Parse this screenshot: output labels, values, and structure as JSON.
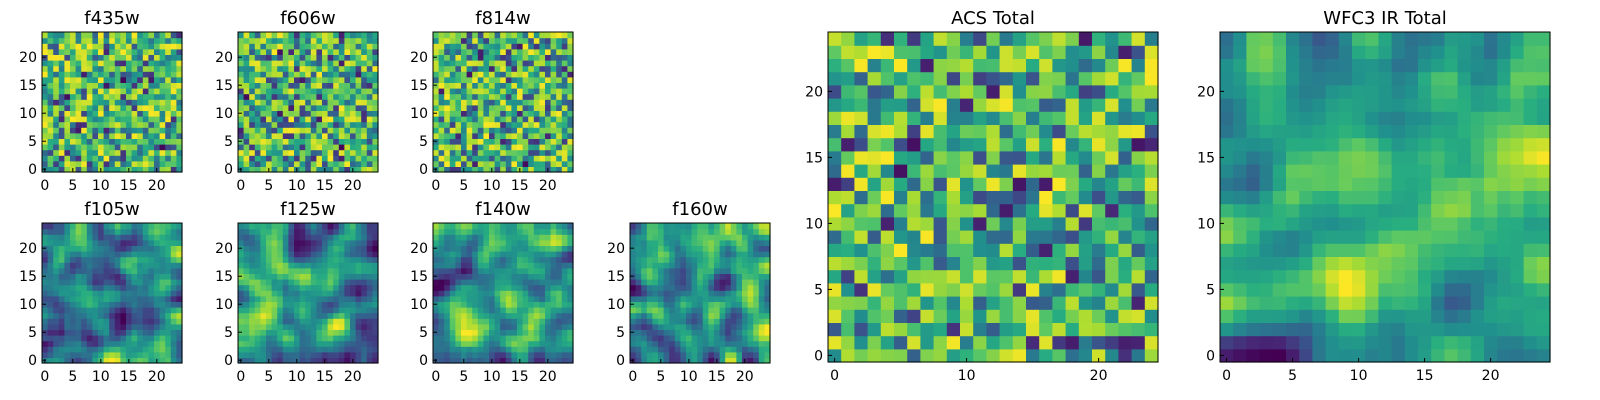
{
  "chart_data": [
    {
      "type": "heatmap",
      "title": "f435w",
      "grid_size": 25,
      "xticks": [
        0,
        5,
        10,
        15,
        20
      ],
      "yticks": [
        0,
        5,
        10,
        15,
        20
      ],
      "colormap": "viridis",
      "texture": "noise",
      "seed": 11
    },
    {
      "type": "heatmap",
      "title": "f606w",
      "grid_size": 25,
      "xticks": [
        0,
        5,
        10,
        15,
        20
      ],
      "yticks": [
        0,
        5,
        10,
        15,
        20
      ],
      "colormap": "viridis",
      "texture": "noise",
      "seed": 23
    },
    {
      "type": "heatmap",
      "title": "f814w",
      "grid_size": 25,
      "xticks": [
        0,
        5,
        10,
        15,
        20
      ],
      "yticks": [
        0,
        5,
        10,
        15,
        20
      ],
      "colormap": "viridis",
      "texture": "noise",
      "seed": 37
    },
    {
      "type": "heatmap",
      "title": "f105w",
      "grid_size": 25,
      "xticks": [
        0,
        5,
        10,
        15,
        20
      ],
      "yticks": [
        0,
        5,
        10,
        15,
        20
      ],
      "colormap": "viridis",
      "texture": "smooth",
      "seed": 41
    },
    {
      "type": "heatmap",
      "title": "f125w",
      "grid_size": 25,
      "xticks": [
        0,
        5,
        10,
        15,
        20
      ],
      "yticks": [
        0,
        5,
        10,
        15,
        20
      ],
      "colormap": "viridis",
      "texture": "smooth",
      "seed": 53
    },
    {
      "type": "heatmap",
      "title": "f140w",
      "grid_size": 25,
      "xticks": [
        0,
        5,
        10,
        15,
        20
      ],
      "yticks": [
        0,
        5,
        10,
        15,
        20
      ],
      "colormap": "viridis",
      "texture": "smooth",
      "seed": 67
    },
    {
      "type": "heatmap",
      "title": "f160w",
      "grid_size": 25,
      "xticks": [
        0,
        5,
        10,
        15,
        20
      ],
      "yticks": [
        0,
        5,
        10,
        15,
        20
      ],
      "colormap": "viridis",
      "texture": "smooth",
      "seed": 79
    },
    {
      "type": "heatmap",
      "title": "ACS Total",
      "grid_size": 25,
      "xticks": [
        0,
        10,
        20
      ],
      "yticks": [
        0,
        5,
        10,
        15,
        20
      ],
      "colormap": "viridis",
      "texture": "noise",
      "seed": 83
    },
    {
      "type": "heatmap",
      "title": "WFC3 IR Total",
      "grid_size": 25,
      "xticks": [
        0,
        5,
        10,
        15,
        20
      ],
      "yticks": [
        0,
        5,
        10,
        15,
        20
      ],
      "colormap": "viridis",
      "texture": "smooth",
      "seed": 97
    }
  ],
  "colors": {
    "low": "#440154",
    "high": "#fde725"
  }
}
